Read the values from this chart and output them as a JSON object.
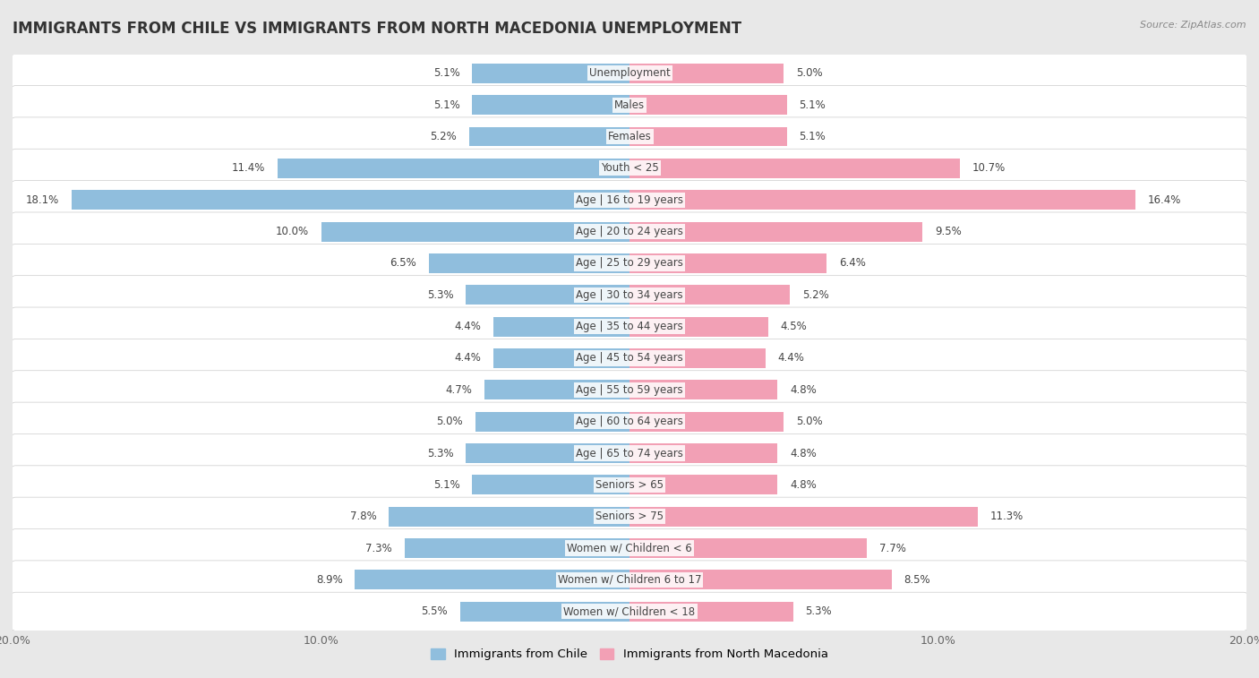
{
  "title": "IMMIGRANTS FROM CHILE VS IMMIGRANTS FROM NORTH MACEDONIA UNEMPLOYMENT",
  "source": "Source: ZipAtlas.com",
  "categories": [
    "Unemployment",
    "Males",
    "Females",
    "Youth < 25",
    "Age | 16 to 19 years",
    "Age | 20 to 24 years",
    "Age | 25 to 29 years",
    "Age | 30 to 34 years",
    "Age | 35 to 44 years",
    "Age | 45 to 54 years",
    "Age | 55 to 59 years",
    "Age | 60 to 64 years",
    "Age | 65 to 74 years",
    "Seniors > 65",
    "Seniors > 75",
    "Women w/ Children < 6",
    "Women w/ Children 6 to 17",
    "Women w/ Children < 18"
  ],
  "chile_values": [
    5.1,
    5.1,
    5.2,
    11.4,
    18.1,
    10.0,
    6.5,
    5.3,
    4.4,
    4.4,
    4.7,
    5.0,
    5.3,
    5.1,
    7.8,
    7.3,
    8.9,
    5.5
  ],
  "macedonia_values": [
    5.0,
    5.1,
    5.1,
    10.7,
    16.4,
    9.5,
    6.4,
    5.2,
    4.5,
    4.4,
    4.8,
    5.0,
    4.8,
    4.8,
    11.3,
    7.7,
    8.5,
    5.3
  ],
  "chile_color": "#90bedd",
  "macedonia_color": "#f2a0b5",
  "background_color": "#e8e8e8",
  "row_color": "#ffffff",
  "max_val": 20.0,
  "label_fontsize": 8.5,
  "value_fontsize": 8.5,
  "title_fontsize": 12,
  "legend_chile": "Immigrants from Chile",
  "legend_macedonia": "Immigrants from North Macedonia"
}
